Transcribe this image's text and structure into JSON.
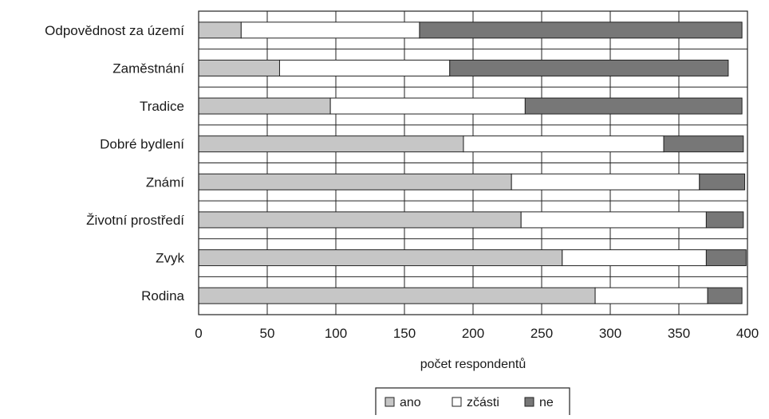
{
  "chart_data": {
    "type": "bar",
    "orientation": "horizontal",
    "stacked": true,
    "categories": [
      "Odpovědnost za území",
      "Zaměstnání",
      "Tradice",
      "Dobré bydlení",
      "Známí",
      "Životní prostředí",
      "Zvyk",
      "Rodina"
    ],
    "series": [
      {
        "name": "ano",
        "color": "#c6c6c6",
        "values": [
          31,
          59,
          96,
          193,
          228,
          235,
          265,
          289
        ]
      },
      {
        "name": "zčásti",
        "color": "#ffffff",
        "values": [
          130,
          124,
          142,
          146,
          137,
          135,
          105,
          82
        ]
      },
      {
        "name": "ne",
        "color": "#777777",
        "values": [
          235,
          203,
          158,
          58,
          33,
          27,
          29,
          25
        ]
      }
    ],
    "xlabel": "počet respondentů",
    "ylabel": "",
    "xlim": [
      0,
      400
    ],
    "xticks": [
      0,
      50,
      100,
      150,
      200,
      250,
      300,
      350,
      400
    ],
    "grid": true,
    "legend": {
      "position": "bottom-center",
      "entries": [
        {
          "symbol": "□",
          "fill": "#c6c6c6",
          "label": "ano"
        },
        {
          "symbol": "□",
          "fill": "#ffffff",
          "label": "zčásti"
        },
        {
          "symbol": "□",
          "fill": "#777777",
          "label": "ne"
        }
      ]
    }
  }
}
